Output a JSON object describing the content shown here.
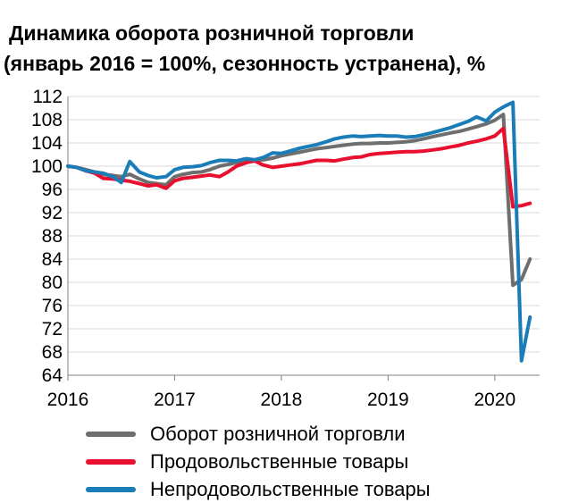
{
  "colors": {
    "total": "#6e6e6e",
    "food": "#e8102e",
    "nonfood": "#1a7db8",
    "grid": "#d9d9d9",
    "axis": "#808080"
  },
  "chart_data": {
    "type": "line",
    "title": "Динамика оборота розничной торговли",
    "subtitle": "(январь 2016 = 100%, сезонность устранена), %",
    "xlabel": "",
    "ylabel": "",
    "ylim": [
      64,
      112
    ],
    "yticks": [
      "112",
      "108",
      "104",
      "100",
      "96",
      "92",
      "88",
      "84",
      "80",
      "76",
      "72",
      "68",
      "64"
    ],
    "xticks": [
      "2016",
      "2017",
      "2018",
      "2019",
      "2020"
    ],
    "grid": true,
    "legend_position": "bottom",
    "x": [
      2016.0,
      2016.08,
      2016.17,
      2016.25,
      2016.33,
      2016.42,
      2016.5,
      2016.58,
      2016.67,
      2016.75,
      2016.83,
      2016.92,
      2017.0,
      2017.08,
      2017.17,
      2017.25,
      2017.33,
      2017.42,
      2017.5,
      2017.58,
      2017.67,
      2017.75,
      2017.83,
      2017.92,
      2018.0,
      2018.08,
      2018.17,
      2018.25,
      2018.33,
      2018.42,
      2018.5,
      2018.58,
      2018.67,
      2018.75,
      2018.83,
      2018.92,
      2019.0,
      2019.08,
      2019.17,
      2019.25,
      2019.33,
      2019.42,
      2019.5,
      2019.58,
      2019.67,
      2019.75,
      2019.83,
      2019.92,
      2020.0,
      2020.08,
      2020.17,
      2020.25,
      2020.33
    ],
    "series": [
      {
        "name": "Оборот розничной торговли",
        "color_key": "total",
        "values": [
          100,
          99.8,
          99.4,
          99,
          98.6,
          98.4,
          98.2,
          98.6,
          97.8,
          97.2,
          97.0,
          96.8,
          98.2,
          98.6,
          98.9,
          99.0,
          99.4,
          100.0,
          100.3,
          100.6,
          100.9,
          101.1,
          101.1,
          101.4,
          101.8,
          102.1,
          102.4,
          102.7,
          103.0,
          103.2,
          103.4,
          103.6,
          103.8,
          103.9,
          103.9,
          104.0,
          104.0,
          104.1,
          104.2,
          104.4,
          104.7,
          105.1,
          105.4,
          105.7,
          106.0,
          106.4,
          106.8,
          107.3,
          107.9,
          108.9,
          79.5,
          80.5,
          84.0
        ]
      },
      {
        "name": "Продовольственные товары",
        "color_key": "food",
        "values": [
          100,
          99.8,
          99.2,
          98.8,
          97.9,
          97.8,
          97.6,
          97.4,
          97.0,
          96.6,
          96.8,
          96.2,
          97.5,
          97.9,
          98.1,
          98.3,
          98.5,
          98.2,
          99.0,
          100.0,
          100.6,
          100.9,
          100.2,
          99.8,
          100.0,
          100.2,
          100.4,
          100.7,
          101.0,
          101.0,
          100.9,
          101.2,
          101.5,
          101.6,
          102.0,
          102.2,
          102.3,
          102.4,
          102.5,
          102.5,
          102.6,
          102.8,
          103.0,
          103.3,
          103.6,
          104.0,
          104.3,
          104.7,
          105.2,
          106.5,
          93.0,
          93.2,
          93.6
        ]
      },
      {
        "name": "Непродовольственные товары",
        "color_key": "nonfood",
        "values": [
          100,
          99.8,
          99.2,
          99.0,
          98.8,
          98.2,
          97.2,
          100.8,
          99.0,
          98.4,
          98.0,
          98.2,
          99.4,
          99.8,
          99.9,
          100.1,
          100.6,
          101.0,
          101.0,
          100.9,
          101.3,
          101.1,
          101.5,
          102.3,
          102.2,
          102.6,
          103.1,
          103.4,
          103.7,
          104.2,
          104.7,
          105.0,
          105.2,
          105.1,
          105.2,
          105.3,
          105.2,
          105.2,
          105.0,
          105.1,
          105.4,
          105.8,
          106.2,
          106.6,
          107.2,
          107.7,
          108.5,
          107.8,
          109.3,
          110.2,
          111.0,
          66.5,
          74.0
        ]
      }
    ]
  }
}
